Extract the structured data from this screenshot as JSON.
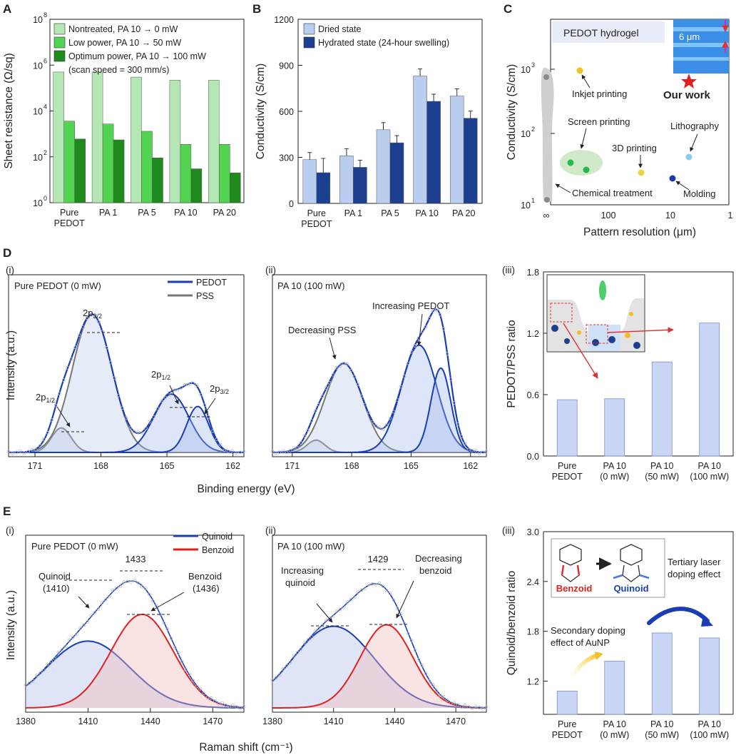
{
  "chart_data": [
    {
      "id": "A",
      "panel": "A",
      "type": "bar",
      "log_y": true,
      "ylabel": "Sheet resistance (Ω/sq)",
      "ylim": [
        1,
        100000000
      ],
      "yticks": [
        "10",
        "10",
        "10",
        "10",
        "10"
      ],
      "yexp": [
        "0",
        "2",
        "4",
        "6",
        "8"
      ],
      "categories": [
        "Pure\nPEDOT",
        "PA 1",
        "PA 5",
        "PA 10",
        "PA 20"
      ],
      "series": [
        {
          "name": "Nontreated, PA 10 → 0 mW",
          "color": "#b5e7b5",
          "values": [
            500000,
            500000,
            300000,
            220000,
            220000
          ]
        },
        {
          "name": "Low power, PA 10 → 50 mW",
          "color": "#52d452",
          "values": [
            3600,
            2700,
            1300,
            350,
            350
          ]
        },
        {
          "name": "Optimum power, PA 10 → 100 mW",
          "color": "#1e8a1e",
          "values": [
            600,
            550,
            90,
            30,
            20
          ]
        }
      ],
      "note": "(scan speed = 300 mm/s)"
    },
    {
      "id": "B",
      "panel": "B",
      "type": "bar",
      "ylabel": "Conductivity (S/cm)",
      "ylim": [
        0,
        1200
      ],
      "yticks": [
        "0",
        "300",
        "600",
        "900",
        "1200"
      ],
      "categories": [
        "Pure\nPEDOT",
        "PA 1",
        "PA 5",
        "PA 10",
        "PA 20"
      ],
      "series": [
        {
          "name": "Dried state",
          "color": "#b9cdee",
          "values": [
            285,
            310,
            480,
            830,
            700
          ]
        },
        {
          "name": "Hydrated state (24-hour swelling)",
          "color": "#1c3f8f",
          "values": [
            200,
            235,
            395,
            665,
            555
          ]
        }
      ]
    },
    {
      "id": "C",
      "panel": "C",
      "type": "scatter",
      "ylabel": "Conductivity (S/cm)",
      "xlabel": "Pattern resolution (μm)",
      "xticks": [
        "∞",
        "100",
        "10",
        "1"
      ],
      "yticks": [
        "10",
        "10",
        "10"
      ],
      "yexp": [
        "1",
        "2",
        "3"
      ],
      "title": "PEDOT hydrogel",
      "scale_label": "6 μm",
      "points": [
        {
          "label": "Inkjet printing",
          "x": 80,
          "y": 900,
          "color": "#f0c020"
        },
        {
          "label": "Screen printing",
          "x": 150,
          "y": 38,
          "color": "#27b84a"
        },
        {
          "label": "Screen printing",
          "x": 120,
          "y": 31,
          "color": "#27b84a"
        },
        {
          "label": "3D printing",
          "x": 13,
          "y": 28,
          "color": "#f0d040"
        },
        {
          "label": "Lithography",
          "x": 6,
          "y": 48,
          "color": "#8cc8f0"
        },
        {
          "label": "Molding",
          "x": 10,
          "y": 24,
          "color": "#1e3aa8"
        },
        {
          "label": "Our work",
          "x": 6,
          "y": 1000,
          "color": "#e02020"
        }
      ],
      "annotations": [
        "Inkjet printing",
        "Screen printing",
        "3D printing",
        "Lithography",
        "Molding",
        "Chemical treatment",
        "Our work"
      ]
    },
    {
      "id": "Di",
      "panel": "D",
      "sub": "(i)",
      "type": "line",
      "title": "Pure PEDOT (0 mW)",
      "xlabel": "Binding energy (eV)",
      "ylabel": "Intensity (a.u.)",
      "xticks": [
        "171",
        "168",
        "165",
        "162"
      ],
      "legend": [
        "PEDOT",
        "PSS"
      ],
      "peaks": [
        {
          "label": "2p1/2",
          "pos": 169.8,
          "height": 0.18,
          "series": "PSS"
        },
        {
          "label": "2p3/2",
          "pos": 168.4,
          "height": 0.92,
          "series": "PSS"
        },
        {
          "label": "2p1/2",
          "pos": 164.8,
          "height": 0.42,
          "series": "PEDOT"
        },
        {
          "label": "2p3/2",
          "pos": 163.6,
          "height": 0.35,
          "series": "PEDOT"
        }
      ]
    },
    {
      "id": "Dii",
      "panel": "D",
      "sub": "(ii)",
      "type": "line",
      "title": "PA 10 (100 mW)",
      "xticks": [
        "171",
        "168",
        "165",
        "162"
      ],
      "annotations": [
        "Decreasing PSS",
        "Increasing PEDOT"
      ]
    },
    {
      "id": "Diii",
      "panel": "D",
      "sub": "(iii)",
      "type": "bar",
      "ylabel": "PEDOT/PSS ratio",
      "ylim": [
        0,
        1.8
      ],
      "yticks": [
        "0.0",
        "0.6",
        "1.2",
        "1.8"
      ],
      "categories": [
        "Pure\nPEDOT",
        "PA 10\n(0 mW)",
        "PA 10\n(50 mW)",
        "PA 10\n(100 mW)"
      ],
      "values": [
        0.55,
        0.56,
        0.92,
        1.3
      ],
      "color": "#c9d6f5"
    },
    {
      "id": "Ei",
      "panel": "E",
      "sub": "(i)",
      "type": "line",
      "title": "Pure PEDOT (0 mW)",
      "xlabel": "Raman shift (cm⁻¹)",
      "ylabel": "Intensity (a.u.)",
      "xticks": [
        "1380",
        "1410",
        "1440",
        "1470"
      ],
      "legend": [
        "Quinoid",
        "Benzoid"
      ],
      "peaks": [
        {
          "label": "Quinoid\n(1410)",
          "pos": 1410,
          "height": 0.45
        },
        {
          "label": "Benzoid\n(1436)",
          "pos": 1436,
          "height": 0.63
        },
        {
          "label": "1433",
          "pos": 1433,
          "height": 0.9
        }
      ]
    },
    {
      "id": "Eii",
      "panel": "E",
      "sub": "(ii)",
      "type": "line",
      "title": "PA 10 (100 mW)",
      "xticks": [
        "1380",
        "1410",
        "1440",
        "1470"
      ],
      "peaks": [
        {
          "label": "1429",
          "pos": 1429,
          "height": 0.9
        }
      ],
      "annotations": [
        "Increasing\nquinoid",
        "Decreasing\nbenzoid"
      ]
    },
    {
      "id": "Eiii",
      "panel": "E",
      "sub": "(iii)",
      "type": "bar",
      "ylabel": "Quinoid/benzoid ratio",
      "ylim": [
        0.8,
        3.0
      ],
      "yticks": [
        "1.2",
        "1.8",
        "2.4",
        "3.0"
      ],
      "categories": [
        "Pure\nPEDOT",
        "PA 10\n(0 mW)",
        "PA 10\n(50 mW)",
        "PA 10\n(100 mW)"
      ],
      "values": [
        1.08,
        1.44,
        1.78,
        1.72
      ],
      "color": "#c9d6f5",
      "annotations": [
        "Benzoid",
        "Quinoid",
        "Tertiary laser\ndoping effect",
        "Secondary doping\neffect of AuNP"
      ]
    }
  ]
}
